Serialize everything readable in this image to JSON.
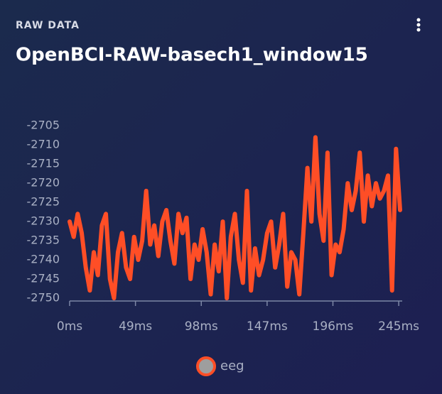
{
  "chart_data": {
    "type": "line",
    "header": "RAW DATA",
    "title": "OpenBCI-RAW-basech1_window15",
    "x": [
      0,
      3,
      6,
      9,
      12,
      15,
      18,
      21,
      24,
      27,
      30,
      33,
      36,
      39,
      42,
      45,
      48,
      51,
      54,
      57,
      60,
      63,
      66,
      69,
      72,
      75,
      78,
      81,
      84,
      87,
      90,
      93,
      96,
      99,
      102,
      105,
      108,
      111,
      114,
      117,
      120,
      123,
      126,
      129,
      132,
      135,
      138,
      141,
      144,
      147,
      150,
      153,
      156,
      159,
      162,
      165,
      168,
      171,
      174,
      177,
      180,
      183,
      186,
      189,
      192,
      195,
      198,
      201,
      204,
      207,
      210,
      213,
      216,
      219,
      222,
      225,
      228,
      231,
      234,
      237,
      240,
      243,
      246
    ],
    "series": [
      {
        "name": "eeg",
        "color": "#ff4e26",
        "values": [
          -2730,
          -2734,
          -2728,
          -2733,
          -2742,
          -2748,
          -2738,
          -2744,
          -2731,
          -2728,
          -2745,
          -2750,
          -2738,
          -2733,
          -2742,
          -2745,
          -2734,
          -2740,
          -2735,
          -2722,
          -2736,
          -2731,
          -2739,
          -2730,
          -2727,
          -2735,
          -2741,
          -2728,
          -2733,
          -2729,
          -2745,
          -2736,
          -2740,
          -2732,
          -2738,
          -2749,
          -2736,
          -2743,
          -2730,
          -2750,
          -2734,
          -2728,
          -2740,
          -2746,
          -2722,
          -2748,
          -2737,
          -2744,
          -2740,
          -2733,
          -2730,
          -2742,
          -2736,
          -2728,
          -2747,
          -2738,
          -2740,
          -2749,
          -2733,
          -2716,
          -2730,
          -2708,
          -2728,
          -2735,
          -2712,
          -2744,
          -2736,
          -2738,
          -2732,
          -2720,
          -2727,
          -2722,
          -2712,
          -2730,
          -2718,
          -2726,
          -2720,
          -2724,
          -2722,
          -2718,
          -2748,
          -2711,
          -2727
        ]
      }
    ],
    "xlim": [
      0,
      246
    ],
    "xticks": [
      {
        "value": 0,
        "label": "0ms"
      },
      {
        "value": 49,
        "label": "49ms"
      },
      {
        "value": 98,
        "label": "98ms"
      },
      {
        "value": 147,
        "label": "147ms"
      },
      {
        "value": 196,
        "label": "196ms"
      },
      {
        "value": 245,
        "label": "245ms"
      }
    ],
    "ylim": [
      -2750,
      -2702
    ],
    "yticks": [
      -2705,
      -2710,
      -2715,
      -2720,
      -2725,
      -2730,
      -2735,
      -2740,
      -2745,
      -2750
    ],
    "grid": false
  }
}
